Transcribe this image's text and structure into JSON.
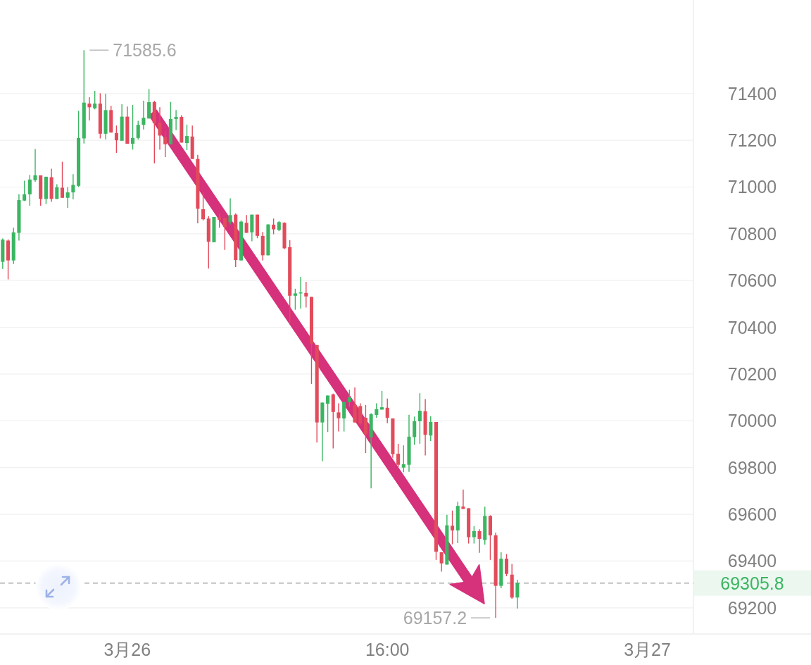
{
  "chart_data": {
    "type": "candlestick",
    "categories": [
      null,
      null,
      null,
      null,
      null,
      null,
      null,
      null,
      null,
      null,
      null,
      null,
      null,
      null,
      null,
      null,
      null,
      null,
      null,
      null,
      null,
      null,
      null,
      "3月26",
      null,
      null,
      null,
      null,
      null,
      null,
      null,
      null,
      null,
      null,
      null,
      null,
      null,
      null,
      null,
      null,
      null,
      null,
      null,
      null,
      null,
      null,
      null,
      null,
      null,
      null,
      null,
      null,
      null,
      null,
      null,
      null,
      null,
      null,
      null,
      null,
      null,
      null,
      null,
      null,
      null,
      null,
      null,
      null,
      null,
      null,
      null,
      "16:00",
      null,
      null,
      null,
      null,
      null,
      null,
      null,
      null,
      null,
      null,
      null,
      null,
      null,
      null,
      null,
      null,
      null,
      null,
      null,
      null,
      null,
      null,
      null,
      null,
      null,
      null,
      null,
      null,
      null,
      null,
      null,
      null,
      null,
      null,
      null,
      null,
      null,
      null,
      null,
      null,
      null,
      null,
      null,
      null,
      null,
      null,
      null,
      "3月27",
      null,
      null,
      null,
      null,
      null,
      null,
      null,
      null
    ],
    "ohlc": [
      [
        70680,
        70780,
        70650,
        70775
      ],
      [
        70771,
        70776,
        70605,
        70686
      ],
      [
        70686,
        70826,
        70671,
        70806
      ],
      [
        70804,
        70969,
        70771,
        70944
      ],
      [
        70942,
        71027,
        70940,
        70969
      ],
      [
        70969,
        71052,
        70920,
        71032
      ],
      [
        71029,
        71163,
        71022,
        71050
      ],
      [
        71050,
        71050,
        70920,
        70949
      ],
      [
        70949,
        71044,
        70927,
        71044
      ],
      [
        71042,
        71078,
        70937,
        70949
      ],
      [
        70949,
        71012,
        70949,
        70999
      ],
      [
        70997,
        71108,
        70954,
        70954
      ],
      [
        70954,
        71000,
        70911,
        70977
      ],
      [
        70977,
        71055,
        70947,
        71009
      ],
      [
        71005,
        71326,
        71000,
        71210
      ],
      [
        71208,
        71585.6,
        71186,
        71361
      ],
      [
        71357,
        71384,
        71285,
        71341
      ],
      [
        71337,
        71411,
        71332,
        71357
      ],
      [
        71357,
        71401,
        71208,
        71228
      ],
      [
        71228,
        71399,
        71204,
        71329
      ],
      [
        71329,
        71347,
        71233,
        71233
      ],
      [
        71231,
        71263,
        71146,
        71200
      ],
      [
        71198,
        71354,
        71198,
        71301
      ],
      [
        71301,
        71344,
        71185,
        71185
      ],
      [
        71185,
        71351,
        71160,
        71210
      ],
      [
        71210,
        71283,
        71203,
        71266
      ],
      [
        71266,
        71369,
        71246,
        71296
      ],
      [
        71293,
        71419,
        71293,
        71363
      ],
      [
        71363,
        71369,
        71101,
        71273
      ],
      [
        71275,
        71341,
        71160,
        71220
      ],
      [
        71213,
        71240,
        71128,
        71183
      ],
      [
        71183,
        71364,
        71183,
        71291
      ],
      [
        71291,
        71329,
        71243,
        71300
      ],
      [
        71300,
        71307,
        71190,
        71190
      ],
      [
        71188,
        71267,
        71158,
        71218
      ],
      [
        71216,
        71263,
        71120,
        71120
      ],
      [
        71120,
        71138,
        70845,
        70907
      ],
      [
        70905,
        70977,
        70857,
        70862
      ],
      [
        70865,
        70875,
        70651,
        70766
      ],
      [
        70764,
        70872,
        70764,
        70872
      ],
      [
        70870,
        70887,
        70826,
        70860
      ],
      [
        70867,
        70867,
        70731,
        70829
      ],
      [
        70850,
        70952,
        70840,
        70880
      ],
      [
        70882,
        70887,
        70658,
        70688
      ],
      [
        70686,
        70857,
        70686,
        70852
      ],
      [
        70847,
        70880,
        70804,
        70804
      ],
      [
        70806,
        70882,
        70768,
        70882
      ],
      [
        70882,
        70882,
        70781,
        70791
      ],
      [
        70791,
        70808,
        70686,
        70708
      ],
      [
        70708,
        70840,
        70708,
        70840
      ],
      [
        70839,
        70865,
        70798,
        70819
      ],
      [
        70816,
        70855,
        70811,
        70850
      ],
      [
        70847,
        70849,
        70734,
        70738
      ],
      [
        70743,
        70773,
        70420,
        70535
      ],
      [
        70535,
        70565,
        70475,
        70545
      ],
      [
        70545,
        70616,
        70480,
        70549
      ],
      [
        70547,
        70595,
        70485,
        70532
      ],
      [
        70530,
        70530,
        70158,
        70330
      ],
      [
        70324,
        70324,
        69907,
        69993
      ],
      [
        69993,
        70078,
        69827,
        70078
      ],
      [
        70073,
        70108,
        69952,
        70108
      ],
      [
        70113,
        70116,
        69882,
        70038
      ],
      [
        70036,
        70075,
        69954,
        70011
      ],
      [
        70010,
        70083,
        69954,
        70080
      ],
      [
        70080,
        70133,
        70060,
        70100
      ],
      [
        70068,
        70143,
        69993,
        69993
      ],
      [
        70063,
        70075,
        69980,
        69988
      ],
      [
        70013,
        70068,
        69862,
        69942
      ],
      [
        69930,
        70033,
        69711,
        70028
      ],
      [
        70025,
        70075,
        70013,
        70050
      ],
      [
        70048,
        70128,
        70048,
        70058
      ],
      [
        70056,
        70095,
        69990,
        70013
      ],
      [
        70010,
        70010,
        69842,
        69857
      ],
      [
        69859,
        69902,
        69802,
        69812
      ],
      [
        69800,
        69895,
        69780,
        69814
      ],
      [
        69812,
        70026,
        69782,
        69932
      ],
      [
        69930,
        70018,
        69897,
        69998
      ],
      [
        69998,
        70118,
        69902,
        70043
      ],
      [
        70041,
        70093,
        69852,
        69940
      ],
      [
        69937,
        70020,
        69914,
        69995
      ],
      [
        69995,
        69995,
        69405,
        69440
      ],
      [
        69438,
        69438,
        69355,
        69390
      ],
      [
        69385,
        69598,
        69385,
        69553
      ],
      [
        69551,
        69616,
        69472,
        69531
      ],
      [
        69531,
        69654,
        69477,
        69636
      ],
      [
        69633,
        69706,
        69623,
        69623
      ],
      [
        69626,
        69626,
        69475,
        69502
      ],
      [
        69502,
        69549,
        69475,
        69528
      ],
      [
        69528,
        69536,
        69435,
        69495
      ],
      [
        69490,
        69633,
        69470,
        69593
      ],
      [
        69593,
        69596,
        69405,
        69510
      ],
      [
        69510,
        69522,
        69157.2,
        69294
      ],
      [
        69294,
        69438,
        69284,
        69410
      ],
      [
        69410,
        69430,
        69335,
        69345
      ],
      [
        69342,
        69388,
        69239,
        69244
      ],
      [
        69244,
        69320,
        69197,
        69305.8
      ],
      null,
      null,
      null,
      null,
      null,
      null,
      null,
      null,
      null,
      null,
      null,
      null,
      null,
      null,
      null,
      null,
      null,
      null,
      null,
      null,
      null,
      null,
      null,
      null,
      null,
      null,
      null,
      null,
      null,
      null,
      null,
      null
    ],
    "colors": [
      "#3bb561",
      "#e24b5b",
      "#3bb561",
      "#3bb561",
      "#3bb561",
      "#3bb561",
      "#3bb561",
      "#e24b5b",
      "#3bb561",
      "#e24b5b",
      "#3bb561",
      "#e24b5b",
      "#3bb561",
      "#3bb561",
      "#3bb561",
      "#3bb561",
      "#e24b5b",
      "#3bb561",
      "#e24b5b",
      "#3bb561",
      "#e24b5b",
      "#e24b5b",
      "#3bb561",
      "#e24b5b",
      "#3bb561",
      "#3bb561",
      "#3bb561",
      "#3bb561",
      "#e24b5b",
      "#e24b5b",
      "#e24b5b",
      "#3bb561",
      "#3bb561",
      "#e24b5b",
      "#3bb561",
      "#e24b5b",
      "#e24b5b",
      "#e24b5b",
      "#e24b5b",
      "#3bb561",
      "#e24b5b",
      "#e24b5b",
      "#3bb561",
      "#e24b5b",
      "#3bb561",
      "#e24b5b",
      "#3bb561",
      "#e24b5b",
      "#e24b5b",
      "#3bb561",
      "#e24b5b",
      "#3bb561",
      "#e24b5b",
      "#e24b5b",
      "#3bb561",
      "#3bb561",
      "#e24b5b",
      "#e24b5b",
      "#e24b5b",
      "#3bb561",
      "#3bb561",
      "#e24b5b",
      "#e24b5b",
      "#3bb561",
      "#3bb561",
      "#e24b5b",
      "#e24b5b",
      "#e24b5b",
      "#3bb561",
      "#3bb561",
      "#3bb561",
      "#e24b5b",
      "#e24b5b",
      "#e24b5b",
      "#3bb561",
      "#3bb561",
      "#3bb561",
      "#3bb561",
      "#e24b5b",
      "#3bb561",
      "#e24b5b",
      "#e24b5b",
      "#3bb561",
      "#e24b5b",
      "#3bb561",
      "#e24b5b",
      "#e24b5b",
      "#3bb561",
      "#e24b5b",
      "#3bb561",
      "#e24b5b",
      "#e24b5b",
      "#3bb561",
      "#e24b5b",
      "#e24b5b",
      "#3bb561",
      null,
      null,
      null,
      null,
      null,
      null,
      null,
      null,
      null,
      null,
      null,
      null,
      null,
      null,
      null,
      null,
      null,
      null,
      null,
      null,
      null,
      null,
      null,
      null,
      null,
      null,
      null,
      null,
      null,
      null,
      null,
      null
    ],
    "ylim": [
      69088,
      71800
    ],
    "yticks": [
      69200,
      69400,
      69600,
      69800,
      70000,
      70200,
      70400,
      70600,
      70800,
      71000,
      71200,
      71400
    ],
    "grid": "y",
    "ref_lines": [
      {
        "axis": "y",
        "value": 69305.8,
        "label": "69305.8",
        "color": "#aaaaaa",
        "line_style": "dashed"
      }
    ],
    "annotations": [
      "71585.6",
      "69157.2"
    ]
  }
}
